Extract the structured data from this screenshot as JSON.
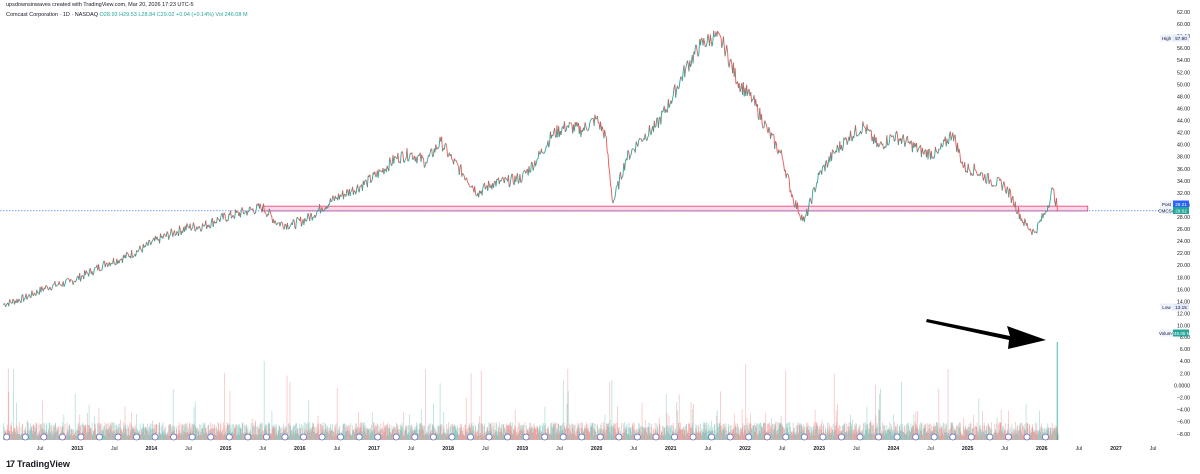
{
  "header": {
    "attribution": "upsdownsinwaves created with TradingView.com, Mar 20, 2026 17:23 UTC-5",
    "symbol": "Comcast Corporation · 1D · NASDAQ",
    "ohlc": "O28.93 H29.53 L28.84 C29.02 +0.04 (+0.14%) Vol 246.08 M"
  },
  "brand": {
    "name": "TradingView",
    "logo_text": "17"
  },
  "colors": {
    "up": "#26a69a",
    "down": "#ef5350",
    "accent": "#2962ff",
    "zone_fill": "#f8bbd0",
    "zone_stroke": "#e91e63",
    "last_line": "#2962ff",
    "axis_text": "#131722",
    "arrow": "#000000"
  },
  "labels": {
    "high": {
      "tag": "High",
      "value": "57.90"
    },
    "low": {
      "tag": "Low",
      "value": "13.15"
    },
    "post": {
      "tag": "Post",
      "value": "29.21"
    },
    "last": {
      "tag": "CMCSA",
      "value": "29.02"
    },
    "volume": {
      "tag": "Volume",
      "value": "246.08 M"
    }
  },
  "chart_data": {
    "type": "line",
    "title": "Comcast Corporation · 1D · NASDAQ",
    "xlabel": "",
    "ylabel": "",
    "price_ticks": [
      "62.00",
      "60.00",
      "58.00",
      "56.00",
      "54.00",
      "52.00",
      "50.00",
      "48.00",
      "46.00",
      "44.00",
      "42.00",
      "40.00",
      "38.00",
      "36.00",
      "34.00",
      "32.00",
      "30.00",
      "28.00",
      "26.00",
      "24.00",
      "22.00",
      "20.00",
      "18.00",
      "16.00",
      "14.00",
      "12.00",
      "10.00"
    ],
    "volume_ticks": [
      "8.00",
      "6.00",
      "4.00",
      "2.00",
      "0.0000",
      "−2.00",
      "−4.00",
      "−6.00",
      "−8.00"
    ],
    "x_ticks": [
      "Jul",
      "2013",
      "Jul",
      "2014",
      "Jul",
      "2015",
      "Jul",
      "2016",
      "Jul",
      "2017",
      "Jul",
      "2018",
      "Jul",
      "2019",
      "Jul",
      "2020",
      "Jul",
      "2021",
      "Jul",
      "2022",
      "Jul",
      "2023",
      "Jul",
      "2024",
      "Jul",
      "2025",
      "Jul",
      "2026",
      "Jul",
      "2027",
      "Jul"
    ],
    "x_tick_dates": [
      2012.5,
      2013,
      2013.5,
      2014,
      2014.5,
      2015,
      2015.5,
      2016,
      2016.5,
      2017,
      2017.5,
      2018,
      2018.5,
      2019,
      2019.5,
      2020,
      2020.5,
      2021,
      2021.5,
      2022,
      2022.5,
      2023,
      2023.5,
      2024,
      2024.5,
      2025,
      2025.5,
      2026,
      2026.5,
      2027,
      2027.5
    ],
    "price_range": [
      9,
      63
    ],
    "x_range": [
      2012.0,
      2027.62
    ],
    "series": [
      {
        "values_x": [
          2012.0,
          2012.3,
          2012.6,
          2012.9,
          2013.2,
          2013.4,
          2013.6,
          2013.9,
          2014.1,
          2014.3,
          2014.5,
          2014.7,
          2014.9,
          2015.1,
          2015.3,
          2015.5,
          2015.7,
          2015.9,
          2016.1,
          2016.3,
          2016.5,
          2016.7,
          2016.9,
          2017.1,
          2017.3,
          2017.5,
          2017.7,
          2017.9,
          2018.05,
          2018.25,
          2018.4,
          2018.6,
          2018.8,
          2019.0,
          2019.2,
          2019.4,
          2019.6,
          2019.8,
          2020.0,
          2020.12,
          2020.22,
          2020.4,
          2020.6,
          2020.8,
          2021.0,
          2021.2,
          2021.4,
          2021.6,
          2021.72,
          2021.9,
          2022.1,
          2022.3,
          2022.5,
          2022.65,
          2022.8,
          2023.0,
          2023.2,
          2023.4,
          2023.6,
          2023.8,
          2024.0,
          2024.2,
          2024.4,
          2024.6,
          2024.8,
          2024.95,
          2025.1,
          2025.3,
          2025.5,
          2025.6,
          2025.75,
          2025.9,
          2026.05,
          2026.15,
          2026.22
        ],
        "values_y": [
          13.5,
          14.6,
          16.4,
          17.2,
          19,
          20.4,
          21.1,
          22.9,
          24.3,
          25.4,
          26.3,
          26.5,
          27.6,
          28.3,
          29,
          29.6,
          27,
          26.7,
          27.7,
          29.6,
          31.2,
          32.4,
          33.7,
          35.6,
          37.8,
          38.5,
          37.1,
          40.5,
          37.5,
          34.5,
          32,
          33.6,
          33.9,
          34.6,
          37.6,
          41.6,
          43.1,
          42.4,
          44.3,
          41.5,
          30.3,
          37.7,
          41,
          43,
          47.3,
          52.6,
          56.5,
          58,
          56.4,
          50.5,
          47.5,
          42.5,
          38,
          31,
          27.2,
          35,
          38.6,
          41.3,
          43.1,
          39.6,
          41.5,
          40.3,
          38.7,
          38.5,
          42,
          36.2,
          35.8,
          34.1,
          33.2,
          31.1,
          27.2,
          25.4,
          28.8,
          32.6,
          29.0
        ],
        "line_up_color": "#26a69a",
        "line_down_color": "#ef5350"
      }
    ],
    "resistance_zone": [
      29.0,
      29.8
    ],
    "last_price": 29.02,
    "post_price": 29.21,
    "high": 57.9,
    "low": 13.15,
    "grid": false,
    "legend": "top-left"
  }
}
